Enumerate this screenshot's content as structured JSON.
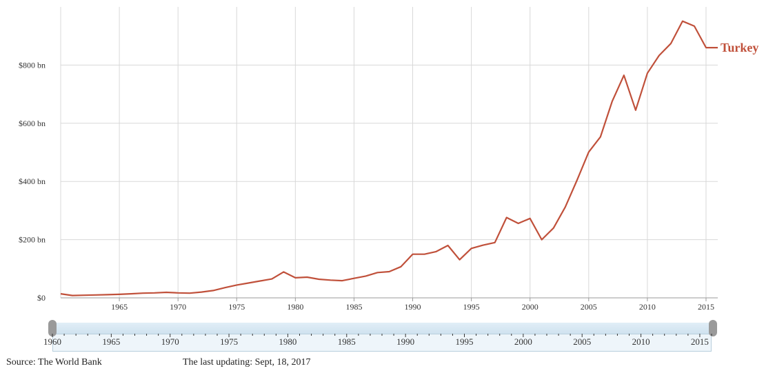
{
  "chart_data": {
    "type": "line",
    "series": [
      {
        "name": "Turkey",
        "color": "#c0503a",
        "x": [
          1960,
          1961,
          1962,
          1963,
          1964,
          1965,
          1966,
          1967,
          1968,
          1969,
          1970,
          1971,
          1972,
          1973,
          1974,
          1975,
          1976,
          1977,
          1978,
          1979,
          1980,
          1981,
          1982,
          1983,
          1984,
          1985,
          1986,
          1987,
          1988,
          1989,
          1990,
          1991,
          1992,
          1993,
          1994,
          1995,
          1996,
          1997,
          1998,
          1999,
          2000,
          2001,
          2002,
          2003,
          2004,
          2005,
          2006,
          2007,
          2008,
          2009,
          2010,
          2011,
          2012,
          2013,
          2014,
          2015,
          2016
        ],
        "values": [
          14,
          8,
          9,
          10,
          11,
          12,
          14,
          16,
          17,
          19,
          17,
          16,
          20,
          25,
          35,
          44,
          51,
          58,
          65,
          89,
          69,
          71,
          64,
          61,
          59,
          67,
          75,
          87,
          90,
          107,
          150,
          150,
          159,
          180,
          131,
          170,
          181,
          190,
          276,
          256,
          273,
          200,
          240,
          312,
          404,
          501,
          553,
          675,
          765,
          645,
          772,
          833,
          874,
          951,
          934,
          860,
          860
        ]
      }
    ],
    "x_ticks": [
      "1965",
      "1970",
      "1975",
      "1980",
      "1985",
      "1990",
      "1995",
      "2000",
      "2005",
      "2010",
      "2015"
    ],
    "y_ticks": [
      "$0",
      "$200 bn",
      "$400 bn",
      "$600 bn",
      "$800 bn"
    ],
    "xlim": [
      1960,
      2016
    ],
    "ylim": [
      0,
      1000
    ],
    "grid": true,
    "navigator_years": [
      "1960",
      "1965",
      "1970",
      "1975",
      "1980",
      "1985",
      "1990",
      "1995",
      "2000",
      "2005",
      "2010",
      "2015"
    ]
  },
  "footer": {
    "source": "Source: The World Bank",
    "updated": "The last updating: Sept, 18, 2017"
  }
}
